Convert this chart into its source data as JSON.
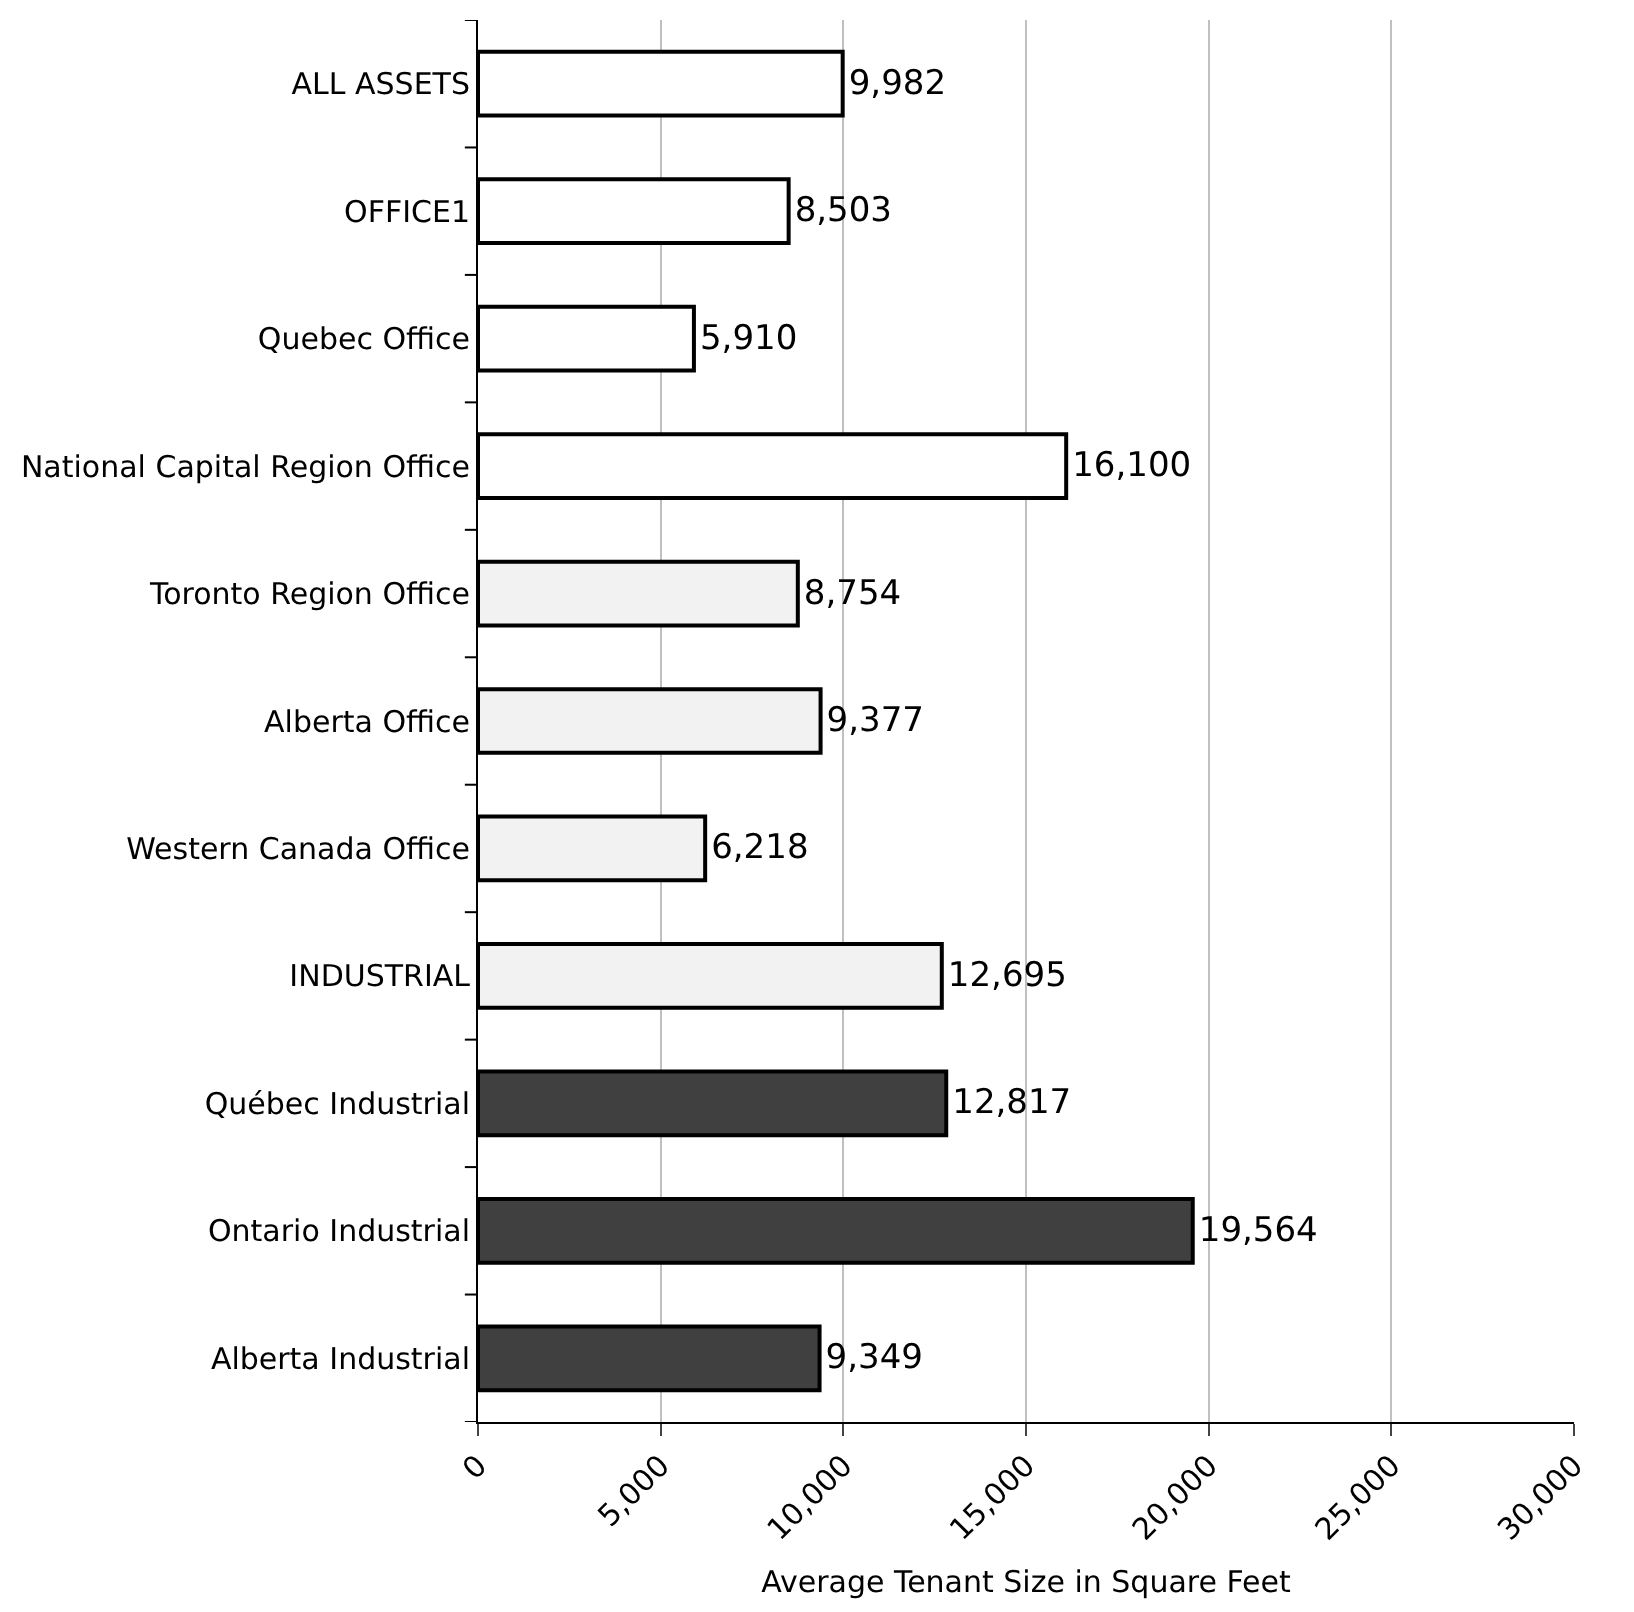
{
  "chart_data": {
    "type": "bar",
    "orientation": "horizontal",
    "xlabel": "Average Tenant Size in Square Feet",
    "categories": [
      "ALL ASSETS",
      "OFFICE1",
      "Quebec Office",
      "National Capital Region Office",
      "Toronto Region Office",
      "Alberta Office",
      "Western Canada Office",
      "INDUSTRIAL",
      "Québec Industrial",
      "Ontario Industrial",
      "Alberta Industrial"
    ],
    "values": [
      9982,
      8503,
      5910,
      16100,
      8754,
      9377,
      6218,
      12695,
      12817,
      19564,
      9349
    ],
    "colors": [
      "#ffffff",
      "#ffffff",
      "#ffffff",
      "#ffffff",
      "#f2f2f2",
      "#f2f2f2",
      "#f2f2f2",
      "#f2f2f2",
      "#404040",
      "#404040",
      "#404040"
    ],
    "xlim": [
      0,
      30000
    ],
    "xticks": [
      {
        "value": 0,
        "label": "0"
      },
      {
        "value": 5000,
        "label": "5,000"
      },
      {
        "value": 10000,
        "label": "10,000"
      },
      {
        "value": 15000,
        "label": "15,000"
      },
      {
        "value": 20000,
        "label": "20,000"
      },
      {
        "value": 25000,
        "label": "25,000"
      },
      {
        "value": 30000,
        "label": "30,000"
      }
    ],
    "value_labels": [
      "9,982",
      "8,503",
      "5,910",
      "16,100",
      "8,754",
      "9,377",
      "6,218",
      "12,695",
      "12,817",
      "19,564",
      "9,349"
    ],
    "grid": "x"
  }
}
